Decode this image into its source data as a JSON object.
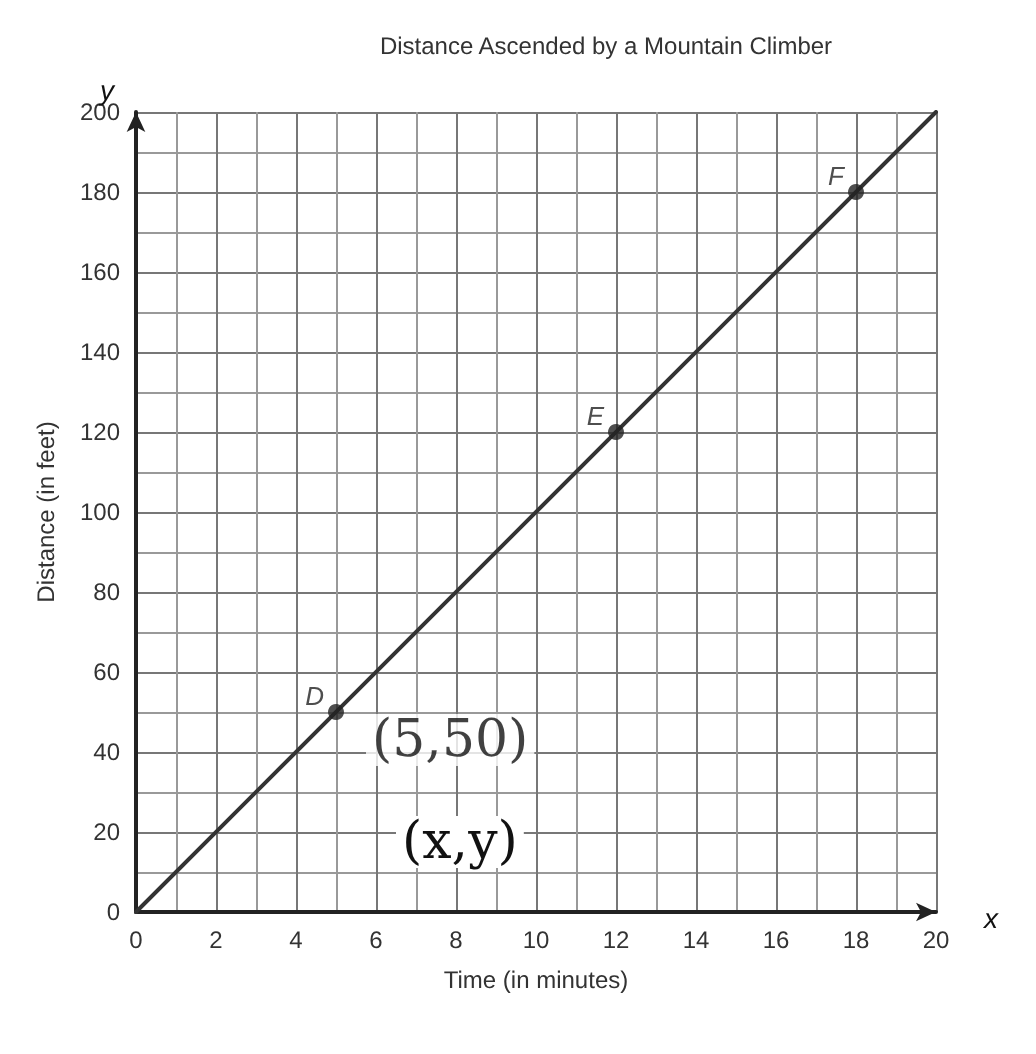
{
  "chart_data": {
    "type": "line",
    "title": "Distance Ascended by a Mountain Climber",
    "xlabel": "Time (in minutes)",
    "ylabel": "Distance (in feet)",
    "series": [
      {
        "color": "#333333",
        "x": [
          0,
          20
        ],
        "values": [
          0,
          200
        ]
      },
      {
        "type": "scatter",
        "color": "#222222",
        "x": [
          5,
          12,
          18
        ],
        "values": [
          50,
          120,
          180
        ]
      }
    ],
    "annotations": [
      {
        "text": "D",
        "x": 5,
        "y": 50
      },
      {
        "text": "E",
        "x": 12,
        "y": 120
      },
      {
        "text": "F",
        "x": 18,
        "y": 180
      },
      {
        "text": "(5,50)",
        "x": 5,
        "y": 50
      },
      "(x,y)",
      "x",
      "y"
    ],
    "xlim": [
      0,
      20
    ],
    "xticks": [
      0,
      2,
      4,
      6,
      8,
      10,
      12,
      14,
      16,
      18,
      20
    ],
    "ylim": [
      0,
      200
    ],
    "yticks": [
      0,
      20,
      40,
      60,
      80,
      100,
      120,
      140,
      160,
      180,
      200
    ],
    "grid": true
  }
}
